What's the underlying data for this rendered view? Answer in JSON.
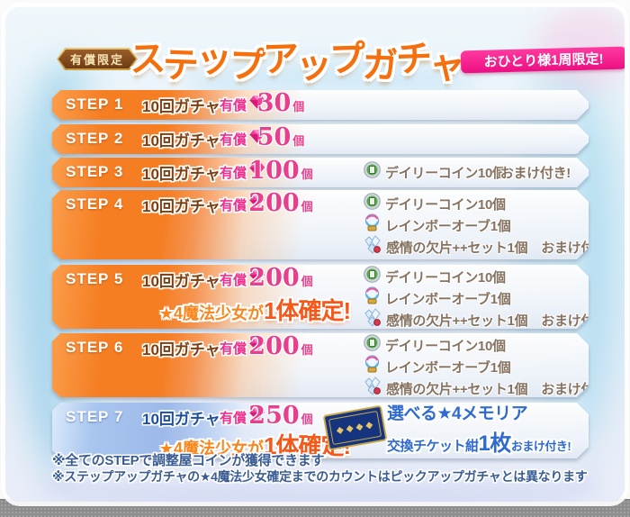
{
  "header": {
    "paid_badge": "有償限定",
    "title": "ステップアップガチャ",
    "limit_ribbon": "おひとり様1周限定!"
  },
  "common": {
    "gacha_label": "10回ガチャ",
    "paid_label": "有償",
    "unit": "個",
    "omake": "おまけ付き!",
    "guarantee_small": "★4魔法少女が",
    "guarantee_big": "1体確定!"
  },
  "bonus_items": {
    "daily_coin": "デイリーコイン10個",
    "rainbow_orb": "レインボーオーブ1個",
    "emotion_fragment": "感情の欠片++セット1個"
  },
  "steps": [
    {
      "name": "STEP 1",
      "amount": "30"
    },
    {
      "name": "STEP 2",
      "amount": "50"
    },
    {
      "name": "STEP 3",
      "amount": "100"
    },
    {
      "name": "STEP 4",
      "amount": "200"
    },
    {
      "name": "STEP 5",
      "amount": "200"
    },
    {
      "name": "STEP 6",
      "amount": "200"
    },
    {
      "name": "STEP 7",
      "amount": "250"
    }
  ],
  "ticket_bonus": {
    "line1": "選べる★4メモリア",
    "line2_prefix": "交換チケット紺",
    "line2_big": "1枚",
    "line2_suffix": "おまけ付き!"
  },
  "footnotes": [
    "※全てのSTEPで調整屋コインが獲得できます",
    "※ステップアップガチャの★4魔法少女確定までのカウントはピックアップガチャとは異なります"
  ],
  "colors": {
    "title_orange": "#f4700f",
    "step_orange": "#f57d22",
    "step_blue": "#9db9e9",
    "paid_pink": "#ee2f8e",
    "amount_pink": "#e73e8d",
    "ribbon_magenta": "#ec0f82",
    "bonus_brown": "#857260",
    "note_navy": "#3a5c94",
    "ticket_blue": "#2f6ad0"
  }
}
